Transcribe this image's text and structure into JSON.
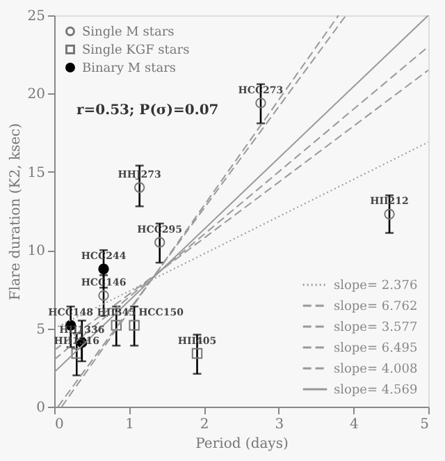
{
  "chart_data": {
    "type": "scatter",
    "xlabel": "Period (days)",
    "ylabel": "Flare duration (K2, ksec)",
    "xlim": [
      0,
      5
    ],
    "ylim": [
      0,
      25
    ],
    "xticks": [
      0,
      1,
      2,
      3,
      4,
      5
    ],
    "yticks": [
      0,
      5,
      10,
      15,
      20,
      25
    ],
    "grid": false,
    "legend": "top left",
    "series": [
      {
        "name": "Single M stars",
        "type": "scatter",
        "marker": "circle",
        "color": "#777777",
        "x": [
          2.76,
          1.14,
          4.48,
          1.41,
          0.66
        ],
        "values": [
          19.4,
          14.0,
          12.3,
          10.5,
          7.1
        ],
        "errors": [
          [
            18.1,
            20.6
          ],
          [
            12.8,
            15.4
          ],
          [
            11.1,
            13.5
          ],
          [
            9.2,
            11.7
          ],
          [
            5.8,
            8.4
          ]
        ]
      },
      {
        "name": "Single KGF stars",
        "type": "scatter",
        "marker": "square",
        "color": "#777777",
        "x": [
          0.3,
          0.83,
          1.07,
          1.91
        ],
        "values": [
          3.4,
          5.2,
          5.2,
          3.4
        ],
        "errors": [
          [
            2.0,
            4.7
          ],
          [
            3.9,
            6.4
          ],
          [
            3.9,
            6.4
          ],
          [
            2.1,
            4.6
          ]
        ]
      },
      {
        "name": "Binary M stars",
        "type": "scatter",
        "marker": "circle",
        "color": "#000000",
        "x": [
          0.66,
          0.22,
          0.37
        ],
        "values": [
          8.8,
          5.2,
          4.1
        ],
        "errors": [
          [
            7.6,
            10.0
          ],
          [
            3.8,
            6.4
          ],
          [
            2.9,
            5.5
          ]
        ]
      },
      {
        "name": "slope= 2.376",
        "type": "line",
        "line_style": "dotted",
        "color": "#999999",
        "x": [
          0,
          5
        ],
        "values": [
          5.0,
          16.9
        ]
      },
      {
        "name": "slope= 6.762",
        "type": "line",
        "line_style": "dashed",
        "color": "#999999",
        "x": [
          0.1,
          3.8
        ],
        "values": [
          0.0,
          25.0
        ]
      },
      {
        "name": "slope= 3.577",
        "type": "line",
        "line_style": "dashed",
        "color": "#999999",
        "x": [
          0,
          5
        ],
        "values": [
          3.6,
          21.5
        ]
      },
      {
        "name": "slope= 6.495",
        "type": "line",
        "line_style": "dashed",
        "color": "#999999",
        "x": [
          0.05,
          3.9
        ],
        "values": [
          0.0,
          25.0
        ]
      },
      {
        "name": "slope= 4.008",
        "type": "line",
        "line_style": "dashed",
        "color": "#999999",
        "x": [
          0,
          5
        ],
        "values": [
          3.0,
          23.0
        ]
      },
      {
        "name": "slope= 4.569",
        "type": "line",
        "line_style": "solid",
        "color": "#999999",
        "x": [
          0,
          5
        ],
        "values": [
          2.2,
          25.0
        ]
      }
    ],
    "annotations": [
      "r=0.53; P(σ)=0.07",
      {
        "text": "HCC273",
        "x": 2.76,
        "y": 19.4
      },
      {
        "text": "HHJ273",
        "x": 1.14,
        "y": 14.0
      },
      {
        "text": "HII212",
        "x": 4.48,
        "y": 12.3
      },
      {
        "text": "HCC295",
        "x": 1.41,
        "y": 10.5
      },
      {
        "text": "HCC244",
        "x": 0.66,
        "y": 8.8
      },
      {
        "text": "HCC146",
        "x": 0.66,
        "y": 7.1
      },
      {
        "text": "HCC148",
        "x": 0.22,
        "y": 5.2
      },
      {
        "text": "HII1336",
        "x": 0.37,
        "y": 4.1
      },
      {
        "text": "HII1516",
        "x": 0.3,
        "y": 3.4
      },
      {
        "text": "HII345",
        "x": 0.83,
        "y": 5.2
      },
      {
        "text": "HCC150",
        "x": 1.07,
        "y": 5.2
      },
      {
        "text": "HII405",
        "x": 1.91,
        "y": 3.4
      }
    ]
  }
}
